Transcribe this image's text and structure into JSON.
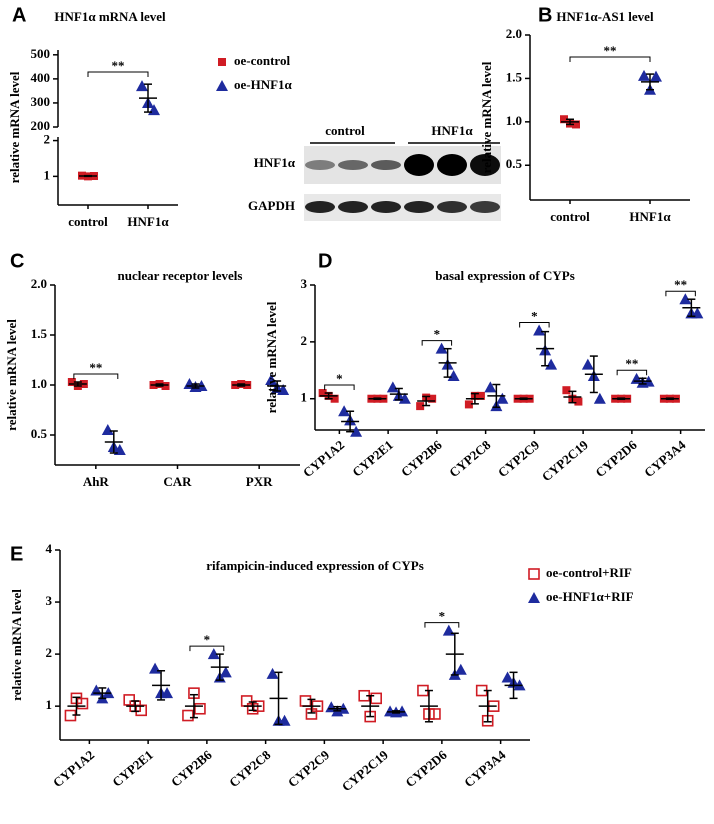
{
  "chart_data": [
    {
      "type": "dotplot",
      "panel": "A",
      "title": "HNF1α mRNA level",
      "ylabel": "relative mRNA level",
      "categories": [
        "control",
        "HNF1α"
      ],
      "ysegments": [
        {
          "ylim": [
            0.2,
            2.1
          ],
          "yticks": [
            1,
            2
          ]
        },
        {
          "ylim": [
            200,
            520
          ],
          "yticks": [
            200,
            300,
            400,
            500
          ]
        }
      ],
      "series": [
        {
          "name": "oe-control",
          "color": "#d01c24",
          "marker": "square",
          "values": [
            [
              1.02,
              1.0,
              1.01
            ],
            null
          ],
          "means": [
            1.01,
            null
          ],
          "errors": [
            0.01,
            null
          ]
        },
        {
          "name": "oe-HNF1α",
          "color": "#1e2b9e",
          "marker": "triangle",
          "values": [
            null,
            [
              370,
              300,
              270
            ]
          ],
          "means": [
            null,
            320
          ],
          "errors": [
            null,
            58
          ]
        }
      ],
      "significance": [
        null,
        "**"
      ],
      "sig_span": true
    },
    {
      "type": "dotplot",
      "panel": "B",
      "title": "HNF1α-AS1 level",
      "ylabel": "relative mRNA level",
      "categories": [
        "control",
        "HNF1α"
      ],
      "ylim": [
        0.1,
        2.0
      ],
      "yticks": [
        0.5,
        {
          "value": 1.0,
          "label": "1.0"
        },
        1.5,
        {
          "value": 2.0,
          "label": "2.0"
        }
      ],
      "series": [
        {
          "color": "#d01c24",
          "marker": "square",
          "values": [
            [
              1.03,
              0.98,
              0.97
            ],
            null
          ],
          "means": [
            1.0,
            null
          ],
          "errors": [
            0.03,
            null
          ]
        },
        {
          "color": "#1e2b9e",
          "marker": "triangle",
          "values": [
            null,
            [
              1.53,
              1.37,
              1.52
            ]
          ],
          "means": [
            null,
            1.46
          ],
          "errors": [
            null,
            0.09
          ]
        }
      ],
      "significance": [
        null,
        "**"
      ],
      "sig_span": true
    },
    {
      "type": "dotplot",
      "panel": "C",
      "title": "nuclear receptor levels",
      "ylabel": "relative mRNA level",
      "categories": [
        "AhR",
        "CAR",
        "PXR"
      ],
      "ylim": [
        0.2,
        2.0
      ],
      "yticks": [
        0.5,
        {
          "value": 1.0,
          "label": "1.0"
        },
        1.5,
        {
          "value": 2.0,
          "label": "2.0"
        }
      ],
      "series": [
        {
          "color": "#d01c24",
          "marker": "square",
          "values": [
            [
              1.03,
              0.99,
              1.01
            ],
            [
              1.0,
              1.01,
              0.99
            ],
            [
              1.0,
              1.01,
              1.0
            ]
          ],
          "means": [
            1.01,
            1.0,
            1.0
          ],
          "errors": [
            0.02,
            0.01,
            0.01
          ]
        },
        {
          "color": "#1e2b9e",
          "marker": "triangle",
          "values": [
            [
              0.55,
              0.38,
              0.35
            ],
            [
              1.01,
              0.98,
              0.99
            ],
            [
              1.05,
              0.97,
              0.95
            ]
          ],
          "means": [
            0.43,
            0.99,
            0.99
          ],
          "errors": [
            0.11,
            0.02,
            0.05
          ]
        }
      ],
      "significance": [
        "**",
        null,
        null
      ]
    },
    {
      "type": "dotplot",
      "panel": "D",
      "title": "basal expression of CYPs",
      "ylabel": "relative mRNA level",
      "categories": [
        "CYP1A2",
        "CYP2E1",
        "CYP2B6",
        "CYP2C8",
        "CYP2C9",
        "CYP2C19",
        "CYP2D6",
        "CYP3A4"
      ],
      "ylim": [
        0.45,
        3
      ],
      "yticks": [
        1,
        2,
        3
      ],
      "series": [
        {
          "color": "#d01c24",
          "marker": "square",
          "values": [
            [
              1.1,
              1.05,
              1.0
            ],
            [
              1.0,
              1.0,
              1.0
            ],
            [
              0.87,
              1.02,
              1.0
            ],
            [
              0.9,
              1.05,
              1.05
            ],
            [
              1.0,
              1.0,
              1.0
            ],
            [
              1.15,
              1.0,
              0.95
            ],
            [
              1.0,
              1.0,
              1.0
            ],
            [
              1.0,
              1.0,
              1.0
            ]
          ],
          "means": [
            1.05,
            1.0,
            0.96,
            1.0,
            1.0,
            1.03,
            1.0,
            1.0
          ],
          "errors": [
            0.05,
            0.01,
            0.08,
            0.09,
            0.01,
            0.1,
            0.01,
            0.01
          ]
        },
        {
          "color": "#1e2b9e",
          "marker": "triangle",
          "values": [
            [
              0.78,
              0.62,
              0.42
            ],
            [
              1.2,
              1.05,
              1.0
            ],
            [
              1.88,
              1.6,
              1.4
            ],
            [
              1.2,
              0.87,
              1.0
            ],
            [
              2.2,
              1.85,
              1.6
            ],
            [
              1.6,
              1.4,
              1.0
            ],
            [
              1.35,
              1.28,
              1.3
            ],
            [
              2.75,
              2.5,
              2.5
            ]
          ],
          "means": [
            0.6,
            1.08,
            1.63,
            1.05,
            1.88,
            1.43,
            1.31,
            2.6
          ],
          "errors": [
            0.18,
            0.1,
            0.25,
            0.2,
            0.3,
            0.32,
            0.05,
            0.15
          ]
        }
      ],
      "significance": [
        "*",
        null,
        "*",
        null,
        "*",
        null,
        "**",
        "**"
      ]
    },
    {
      "type": "dotplot",
      "panel": "E",
      "title": "rifampicin-induced  expression of CYPs",
      "ylabel": "relative mRNA level",
      "categories": [
        "CYP1A2",
        "CYP2E1",
        "CYP2B6",
        "CYP2C8",
        "CYP2C9",
        "CYP2C19",
        "CYP2D6",
        "CYP3A4"
      ],
      "ylim": [
        0.35,
        4
      ],
      "yticks": [
        1,
        2,
        3,
        4
      ],
      "series": [
        {
          "name": "oe-control+RIF",
          "color": "#d01c24",
          "marker": "square-open",
          "values": [
            [
              0.82,
              1.15,
              1.05
            ],
            [
              1.12,
              1.0,
              0.92
            ],
            [
              0.82,
              1.25,
              0.95
            ],
            [
              1.1,
              0.95,
              1.0
            ],
            [
              1.1,
              0.85,
              1.0
            ],
            [
              1.2,
              0.8,
              1.15
            ],
            [
              1.3,
              0.85,
              0.85
            ],
            [
              1.3,
              0.72,
              1.0
            ]
          ],
          "means": [
            1.0,
            1.0,
            1.0,
            1.0,
            1.0,
            1.0,
            1.0,
            1.0
          ],
          "errors": [
            0.17,
            0.1,
            0.22,
            0.08,
            0.13,
            0.2,
            0.3,
            0.3
          ]
        },
        {
          "name": "oe-HNF1α+RIF",
          "color": "#1e2b9e",
          "marker": "triangle",
          "values": [
            [
              1.3,
              1.15,
              1.25
            ],
            [
              1.72,
              1.25,
              1.25
            ],
            [
              2.0,
              1.55,
              1.65
            ],
            [
              1.62,
              0.72,
              0.72
            ],
            [
              0.98,
              0.9,
              0.95
            ],
            [
              0.9,
              0.88,
              0.9
            ],
            [
              2.45,
              1.6,
              1.7
            ],
            [
              1.55,
              1.45,
              1.4
            ]
          ],
          "means": [
            1.25,
            1.4,
            1.75,
            1.15,
            0.95,
            0.89,
            2.0,
            1.4
          ],
          "errors": [
            0.1,
            0.28,
            0.25,
            0.5,
            0.04,
            0.02,
            0.4,
            0.25
          ]
        }
      ],
      "significance": [
        null,
        null,
        "*",
        null,
        null,
        null,
        "*",
        null
      ]
    }
  ],
  "blot": {
    "groups": [
      "control",
      "HNF1α"
    ],
    "rows": [
      "HNF1α",
      "GAPDH"
    ]
  }
}
